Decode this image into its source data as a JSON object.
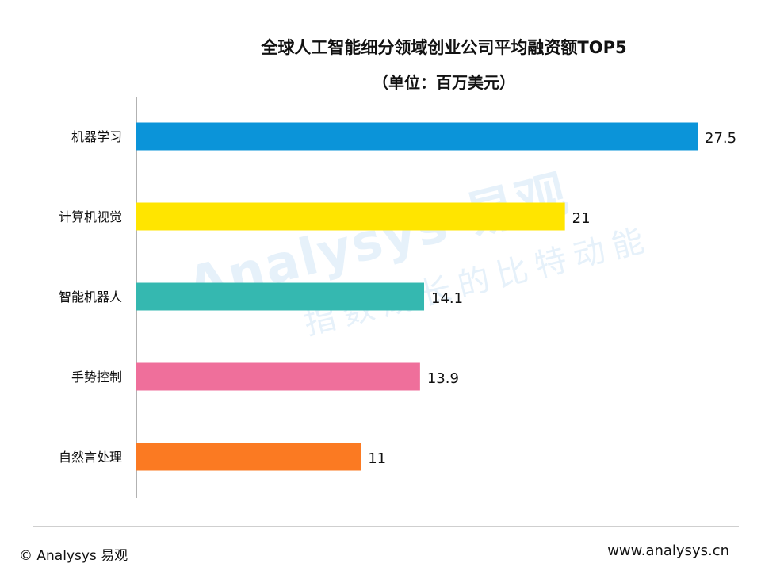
{
  "chart_data": {
    "type": "bar",
    "orientation": "horizontal",
    "title": "全球人工智能细分领域创业公司平均融资额TOP5",
    "subtitle": "（单位：百万美元）",
    "categories": [
      "机器学习",
      "计算机视觉",
      "智能机器人",
      "手势控制",
      "自然言处理"
    ],
    "values": [
      27.5,
      21,
      14.1,
      13.9,
      11
    ],
    "value_labels": [
      "27.5",
      "21",
      "14.1",
      "13.9",
      "11"
    ],
    "colors": [
      "#0b94d9",
      "#ffe500",
      "#35b8b0",
      "#ef6f9b",
      "#fb7a22"
    ],
    "xlim": [
      0,
      27.5
    ],
    "grid": false,
    "legend": "none"
  },
  "watermark": {
    "brand": "Analysys 易观",
    "slogan": "指数成长的比特动能"
  },
  "footer": {
    "copyright": "© Analysys 易观",
    "url": "www.analysys.cn"
  }
}
